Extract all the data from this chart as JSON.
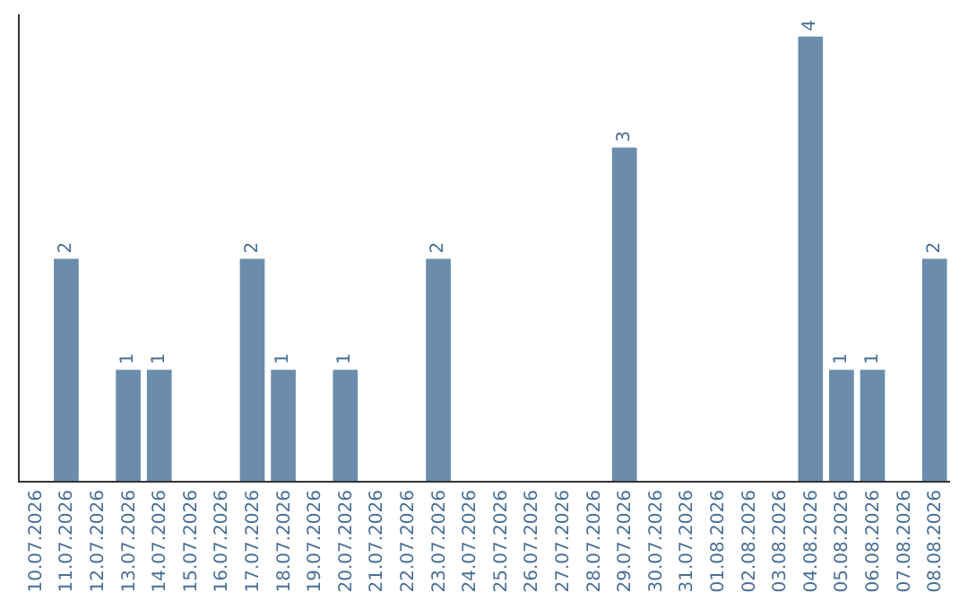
{
  "chart_data": {
    "type": "bar",
    "categories": [
      "10.07.2026",
      "11.07.2026",
      "12.07.2026",
      "13.07.2026",
      "14.07.2026",
      "15.07.2026",
      "16.07.2026",
      "17.07.2026",
      "18.07.2026",
      "19.07.2026",
      "20.07.2026",
      "21.07.2026",
      "22.07.2026",
      "23.07.2026",
      "24.07.2026",
      "25.07.2026",
      "26.07.2026",
      "27.07.2026",
      "28.07.2026",
      "29.07.2026",
      "30.07.2026",
      "31.07.2026",
      "01.08.2026",
      "02.08.2026",
      "03.08.2026",
      "04.08.2026",
      "05.08.2026",
      "06.08.2026",
      "07.08.2026",
      "08.08.2026"
    ],
    "values": [
      0,
      2,
      0,
      1,
      1,
      0,
      0,
      2,
      1,
      0,
      1,
      0,
      0,
      2,
      0,
      0,
      0,
      0,
      0,
      3,
      0,
      0,
      0,
      0,
      0,
      4,
      1,
      1,
      0,
      2
    ],
    "value_labels": [
      null,
      "2",
      null,
      "1",
      "1",
      null,
      null,
      "2",
      "1",
      null,
      "1",
      null,
      null,
      "2",
      null,
      null,
      null,
      null,
      null,
      "3",
      null,
      null,
      null,
      null,
      null,
      "4",
      "1",
      "1",
      null,
      "2"
    ],
    "color": "#6b8cac",
    "ylim": [
      0,
      4.2
    ],
    "tick_labels": "x",
    "grid": false,
    "legend": false
  }
}
